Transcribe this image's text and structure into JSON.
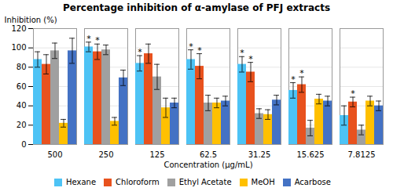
{
  "chart_data": {
    "type": "bar",
    "title": "Percentage inhibition of α-amylase of PFJ extracts",
    "xlabel": "Concentration (µg/mL)",
    "ylabel": "Inhibition (%)",
    "categories": [
      "500",
      "250",
      "125",
      "62.5",
      "31.25",
      "15.625",
      "7.8125"
    ],
    "series": [
      {
        "name": "Hexane",
        "color": "#4DC3F5",
        "values": [
          88,
          101,
          84,
          88,
          83,
          56,
          30
        ],
        "errors": [
          8,
          5,
          8,
          10,
          8,
          8,
          10
        ]
      },
      {
        "name": "Chloroform",
        "color": "#E8521E",
        "values": [
          83,
          96,
          94,
          81,
          75,
          62,
          44
        ],
        "errors": [
          10,
          8,
          10,
          13,
          10,
          8,
          5
        ]
      },
      {
        "name": "Ethyl Acetate",
        "color": "#A0A0A0",
        "values": [
          97,
          98,
          70,
          43,
          32,
          17,
          15
        ],
        "errors": [
          8,
          5,
          13,
          8,
          5,
          8,
          5
        ]
      },
      {
        "name": "MeOH",
        "color": "#FFC000",
        "values": [
          22,
          24,
          38,
          43,
          31,
          47,
          45
        ],
        "errors": [
          4,
          4,
          10,
          5,
          5,
          5,
          5
        ]
      },
      {
        "name": "Acarbose",
        "color": "#4472C4",
        "values": [
          97,
          69,
          43,
          45,
          46,
          45,
          40
        ],
        "errors": [
          13,
          8,
          5,
          5,
          5,
          5,
          5
        ]
      }
    ],
    "annotations": [
      {
        "text": "*",
        "series": "Hexane",
        "category": "250"
      },
      {
        "text": "*",
        "series": "Hexane",
        "category": "125"
      },
      {
        "text": "*",
        "series": "Hexane",
        "category": "62.5"
      },
      {
        "text": "*",
        "series": "Hexane",
        "category": "31.25"
      },
      {
        "text": "*",
        "series": "Hexane",
        "category": "15.625"
      },
      {
        "text": "*",
        "series": "Chloroform",
        "category": "250"
      },
      {
        "text": "*",
        "series": "Chloroform",
        "category": "62.5"
      },
      {
        "text": "*",
        "series": "Chloroform",
        "category": "31.25"
      },
      {
        "text": "*",
        "series": "Chloroform",
        "category": "15.625"
      },
      {
        "text": "*",
        "series": "Chloroform",
        "category": "7.8125"
      }
    ],
    "ylim": [
      0,
      120
    ],
    "yticks": [
      0,
      20,
      40,
      60,
      80,
      100,
      120
    ],
    "grid": true,
    "legend": "bottom"
  }
}
